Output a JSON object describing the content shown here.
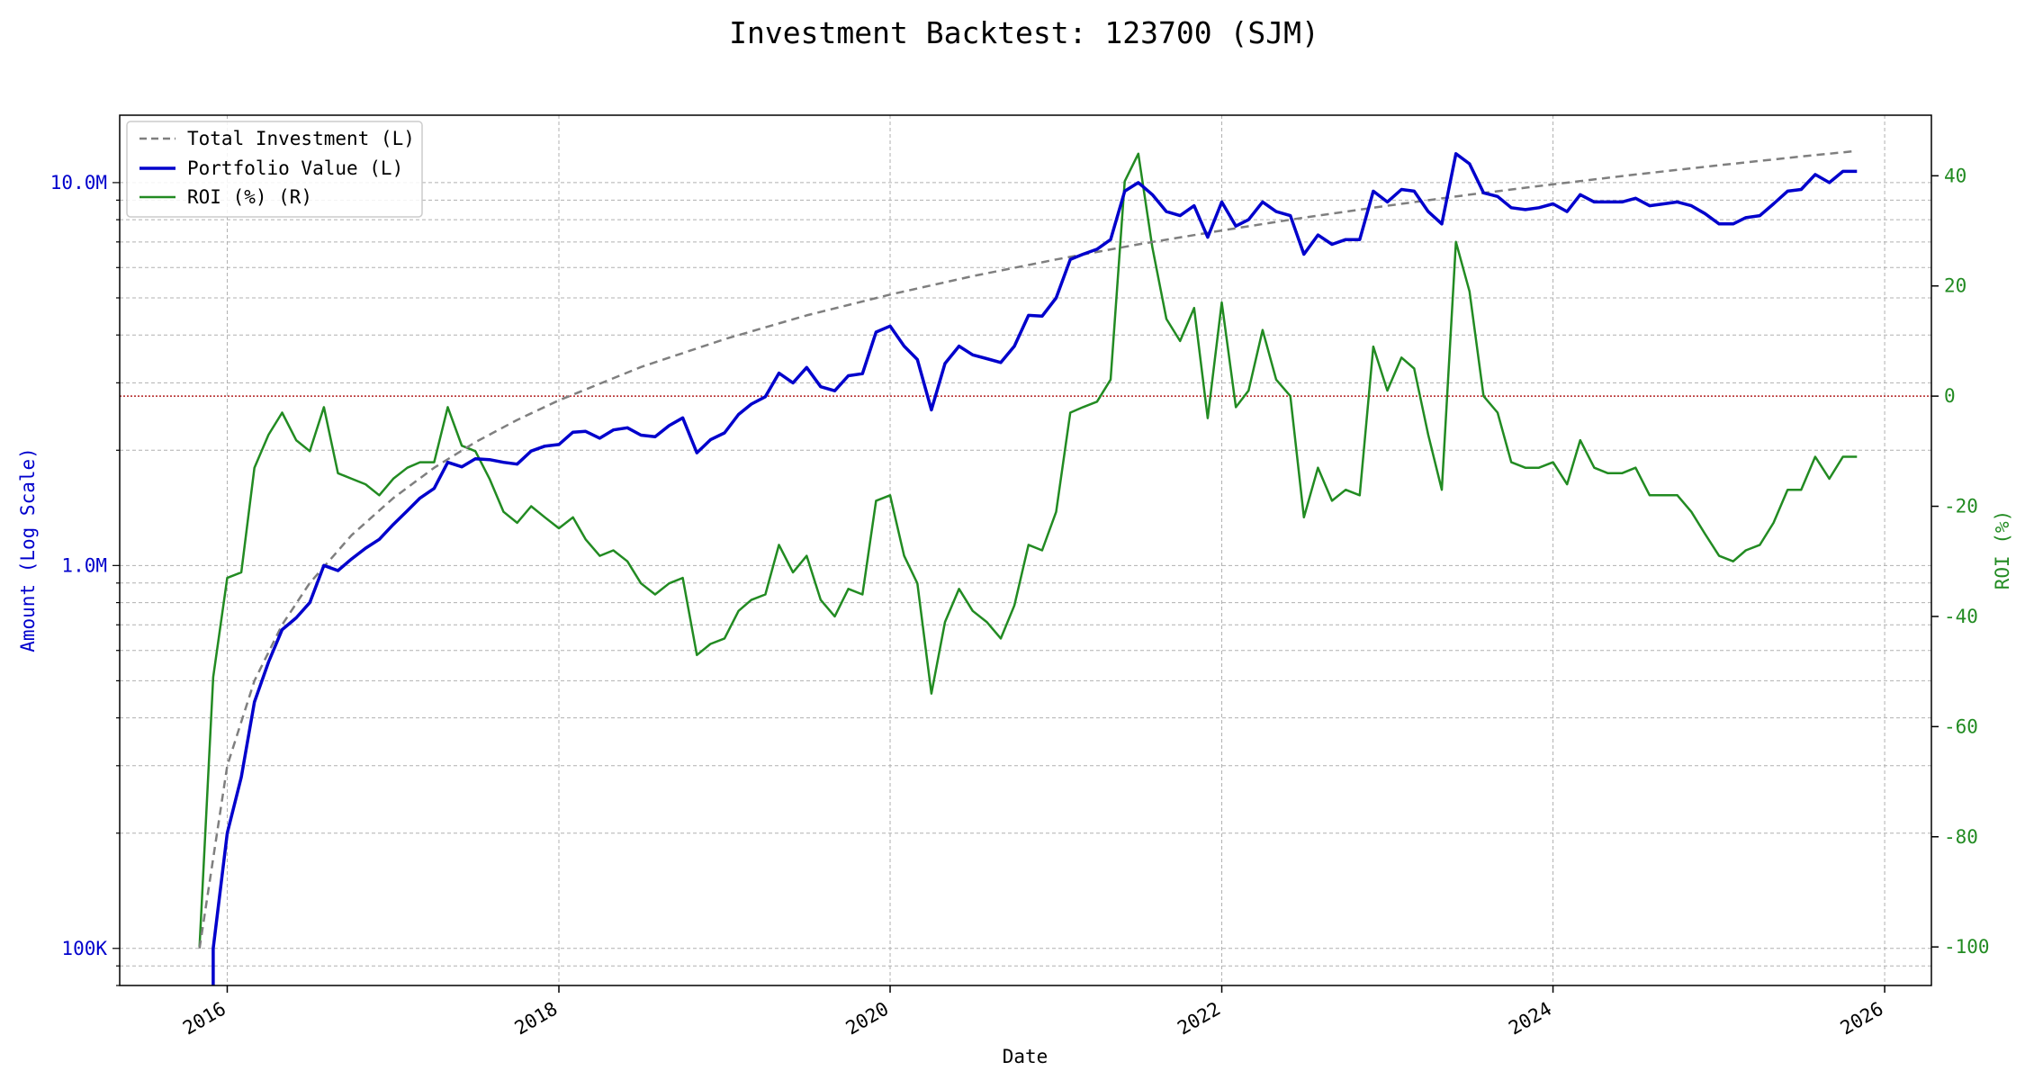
{
  "chart_data": {
    "type": "line",
    "title": "Investment Backtest: 123700 (SJM)",
    "xlabel": "Date",
    "ylabel_left": "Amount (Log Scale)",
    "ylabel_right": "ROI (%)",
    "x_ticks": [
      "2016",
      "2018",
      "2020",
      "2022",
      "2024",
      "2026"
    ],
    "y_left_scale": "log",
    "y_left_range": [
      80000,
      15000000
    ],
    "y_left_ticks": [
      {
        "value": 100000,
        "label": "100K"
      },
      {
        "value": 1000000,
        "label": "1.0M"
      },
      {
        "value": 10000000,
        "label": "10.0M"
      }
    ],
    "y_right_range": [
      -107,
      51
    ],
    "y_right_ticks": [
      "-100",
      "-80",
      "-60",
      "-40",
      "-20",
      "0",
      "20",
      "40"
    ],
    "x_range": [
      "2015-05-09",
      "2026-04-14"
    ],
    "grid": true,
    "legend_position": "top-left",
    "zero_line_color": "#b22222",
    "series": [
      {
        "name": "Total Investment (L)",
        "axis": "left",
        "color": "#7f7f7f",
        "style": "dashed",
        "x": [
          "2015-11-01",
          "2016-01-01",
          "2016-03-01",
          "2016-05-01",
          "2016-07-01",
          "2016-10-01",
          "2017-01-01",
          "2017-04-01",
          "2017-07-01",
          "2017-10-01",
          "2018-01-01",
          "2018-07-01",
          "2019-01-01",
          "2019-07-01",
          "2020-01-01",
          "2020-07-01",
          "2021-01-01",
          "2021-07-01",
          "2022-01-01",
          "2022-07-01",
          "2023-01-01",
          "2023-07-01",
          "2024-01-01",
          "2024-07-01",
          "2025-01-01",
          "2025-07-01",
          "2025-11-01"
        ],
        "values": [
          100000,
          300000,
          500000,
          700000,
          900000,
          1200000,
          1500000,
          1800000,
          2100000,
          2400000,
          2700000,
          3300000,
          3900000,
          4500000,
          5100000,
          5700000,
          6300000,
          6900000,
          7500000,
          8100000,
          8700000,
          9300000,
          9900000,
          10500000,
          11100000,
          11700000,
          12100000
        ]
      },
      {
        "name": "Portfolio Value (L)",
        "axis": "left",
        "color": "#0000cc",
        "style": "solid",
        "x": [
          "2015-12-01",
          "2015-12-01",
          "2016-01-01",
          "2016-02-01",
          "2016-03-01",
          "2016-04-01",
          "2016-05-01",
          "2016-06-01",
          "2016-07-01",
          "2016-08-01",
          "2016-09-01",
          "2016-10-01",
          "2016-11-01",
          "2016-12-01",
          "2017-01-01",
          "2017-02-01",
          "2017-03-01",
          "2017-04-01",
          "2017-05-01",
          "2017-06-01",
          "2017-07-01",
          "2017-08-01",
          "2017-09-01",
          "2017-10-01",
          "2017-11-01",
          "2017-12-01",
          "2018-01-01",
          "2018-02-01",
          "2018-03-01",
          "2018-04-01",
          "2018-05-01",
          "2018-06-01",
          "2018-07-01",
          "2018-08-01",
          "2018-09-01",
          "2018-10-01",
          "2018-11-01",
          "2018-12-01",
          "2019-01-01",
          "2019-02-01",
          "2019-03-01",
          "2019-04-01",
          "2019-05-01",
          "2019-06-01",
          "2019-07-01",
          "2019-08-01",
          "2019-09-01",
          "2019-10-01",
          "2019-11-01",
          "2019-12-01",
          "2020-01-01",
          "2020-02-01",
          "2020-03-01",
          "2020-04-01",
          "2020-05-01",
          "2020-06-01",
          "2020-07-01",
          "2020-08-01",
          "2020-09-01",
          "2020-10-01",
          "2020-11-01",
          "2020-12-01",
          "2021-01-01",
          "2021-02-01",
          "2021-03-01",
          "2021-04-01",
          "2021-05-01",
          "2021-06-01",
          "2021-07-01",
          "2021-08-01",
          "2021-09-01",
          "2021-10-01",
          "2021-11-01",
          "2021-12-01",
          "2022-01-01",
          "2022-02-01",
          "2022-03-01",
          "2022-04-01",
          "2022-05-01",
          "2022-06-01",
          "2022-07-01",
          "2022-08-01",
          "2022-09-01",
          "2022-10-01",
          "2022-11-01",
          "2022-12-01",
          "2023-01-01",
          "2023-02-01",
          "2023-03-01",
          "2023-04-01",
          "2023-05-01",
          "2023-06-01",
          "2023-07-01",
          "2023-08-01",
          "2023-09-01",
          "2023-10-01",
          "2023-11-01",
          "2023-12-01",
          "2024-01-01",
          "2024-02-01",
          "2024-03-01",
          "2024-04-01",
          "2024-05-01",
          "2024-06-01",
          "2024-07-01",
          "2024-08-01",
          "2024-09-01",
          "2024-10-01",
          "2024-11-01",
          "2024-12-01",
          "2025-01-01",
          "2025-02-01",
          "2025-03-01",
          "2025-04-01",
          "2025-05-01",
          "2025-06-01",
          "2025-07-01",
          "2025-08-01",
          "2025-09-01",
          "2025-10-01",
          "2025-11-01"
        ],
        "values": [
          78000,
          100000,
          200000,
          280000,
          440000,
          560000,
          680000,
          730000,
          800000,
          1000000,
          970000,
          1040000,
          1110000,
          1170000,
          1280000,
          1390000,
          1500000,
          1590000,
          1860000,
          1810000,
          1900000,
          1890000,
          1860000,
          1840000,
          1990000,
          2050000,
          2070000,
          2230000,
          2240000,
          2150000,
          2260000,
          2290000,
          2190000,
          2170000,
          2320000,
          2430000,
          1970000,
          2130000,
          2220000,
          2480000,
          2640000,
          2760000,
          3180000,
          3000000,
          3290000,
          2930000,
          2860000,
          3130000,
          3170000,
          4070000,
          4220000,
          3740000,
          3450000,
          2550000,
          3370000,
          3740000,
          3550000,
          3470000,
          3390000,
          3740000,
          4500000,
          4480000,
          5000000,
          6300000,
          6500000,
          6700000,
          7100000,
          9500000,
          10000000,
          9300000,
          8400000,
          8200000,
          8700000,
          7200000,
          8900000,
          7700000,
          8000000,
          8900000,
          8400000,
          8200000,
          6500000,
          7300000,
          6900000,
          7100000,
          7100000,
          9500000,
          8900000,
          9600000,
          9500000,
          8400000,
          7800000,
          11900000,
          11200000,
          9400000,
          9200000,
          8600000,
          8500000,
          8600000,
          8800000,
          8400000,
          9300000,
          8900000,
          8900000,
          8900000,
          9100000,
          8700000,
          8800000,
          8900000,
          8700000,
          8300000,
          7800000,
          7800000,
          8100000,
          8200000,
          8800000,
          9500000,
          9600000,
          10500000,
          10000000,
          10700000,
          10700000
        ]
      },
      {
        "name": "ROI (%) (R)",
        "axis": "right",
        "color": "#228b22",
        "style": "solid",
        "x": [
          "2015-11-01",
          "2015-12-01",
          "2016-01-01",
          "2016-02-01",
          "2016-03-01",
          "2016-04-01",
          "2016-05-01",
          "2016-06-01",
          "2016-07-01",
          "2016-08-01",
          "2016-09-01",
          "2016-10-01",
          "2016-11-01",
          "2016-12-01",
          "2017-01-01",
          "2017-02-01",
          "2017-03-01",
          "2017-04-01",
          "2017-05-01",
          "2017-06-01",
          "2017-07-01",
          "2017-08-01",
          "2017-09-01",
          "2017-10-01",
          "2017-11-01",
          "2017-12-01",
          "2018-01-01",
          "2018-02-01",
          "2018-03-01",
          "2018-04-01",
          "2018-05-01",
          "2018-06-01",
          "2018-07-01",
          "2018-08-01",
          "2018-09-01",
          "2018-10-01",
          "2018-11-01",
          "2018-12-01",
          "2019-01-01",
          "2019-02-01",
          "2019-03-01",
          "2019-04-01",
          "2019-05-01",
          "2019-06-01",
          "2019-07-01",
          "2019-08-01",
          "2019-09-01",
          "2019-10-01",
          "2019-11-01",
          "2019-12-01",
          "2020-01-01",
          "2020-02-01",
          "2020-03-01",
          "2020-04-01",
          "2020-05-01",
          "2020-06-01",
          "2020-07-01",
          "2020-08-01",
          "2020-09-01",
          "2020-10-01",
          "2020-11-01",
          "2020-12-01",
          "2021-01-01",
          "2021-02-01",
          "2021-03-01",
          "2021-04-01",
          "2021-05-01",
          "2021-06-01",
          "2021-07-01",
          "2021-08-01",
          "2021-09-01",
          "2021-10-01",
          "2021-11-01",
          "2021-12-01",
          "2022-01-01",
          "2022-02-01",
          "2022-03-01",
          "2022-04-01",
          "2022-05-01",
          "2022-06-01",
          "2022-07-01",
          "2022-08-01",
          "2022-09-01",
          "2022-10-01",
          "2022-11-01",
          "2022-12-01",
          "2023-01-01",
          "2023-02-01",
          "2023-03-01",
          "2023-04-01",
          "2023-05-01",
          "2023-06-01",
          "2023-07-01",
          "2023-08-01",
          "2023-09-01",
          "2023-10-01",
          "2023-11-01",
          "2023-12-01",
          "2024-01-01",
          "2024-02-01",
          "2024-03-01",
          "2024-04-01",
          "2024-05-01",
          "2024-06-01",
          "2024-07-01",
          "2024-08-01",
          "2024-09-01",
          "2024-10-01",
          "2024-11-01",
          "2024-12-01",
          "2025-01-01",
          "2025-02-01",
          "2025-03-01",
          "2025-04-01",
          "2025-05-01",
          "2025-06-01",
          "2025-07-01",
          "2025-08-01",
          "2025-09-01",
          "2025-10-01",
          "2025-11-01"
        ],
        "values": [
          -100,
          -51,
          -33,
          -32,
          -13,
          -7,
          -3,
          -8,
          -10,
          -2,
          -14,
          -15,
          -16,
          -18,
          -15,
          -13,
          -12,
          -12,
          -2,
          -9,
          -10,
          -15,
          -21,
          -23,
          -20,
          -22,
          -24,
          -22,
          -26,
          -29,
          -28,
          -30,
          -34,
          -36,
          -34,
          -33,
          -47,
          -45,
          -44,
          -39,
          -37,
          -36,
          -27,
          -32,
          -29,
          -37,
          -40,
          -35,
          -36,
          -19,
          -18,
          -29,
          -34,
          -54,
          -41,
          -35,
          -39,
          -41,
          -44,
          -38,
          -27,
          -28,
          -21,
          -3,
          -2,
          -1,
          3,
          39,
          44,
          27,
          14,
          10,
          16,
          -4,
          17,
          -2,
          1,
          12,
          3,
          0,
          -22,
          -13,
          -19,
          -17,
          -18,
          9,
          1,
          7,
          5,
          -7,
          -17,
          28,
          19,
          0,
          -3,
          -12,
          -13,
          -13,
          -12,
          -16,
          -8,
          -13,
          -14,
          -14,
          -13,
          -18,
          -18,
          -18,
          -21,
          -25,
          -29,
          -30,
          -28,
          -27,
          -23,
          -17,
          -17,
          -11,
          -15,
          -11,
          -11
        ]
      }
    ]
  }
}
